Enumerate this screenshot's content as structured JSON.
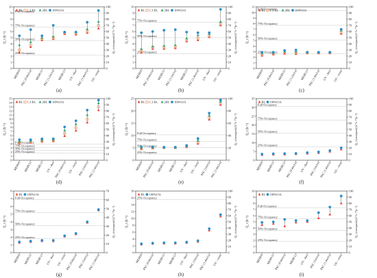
{
  "figure": {
    "legend_labels": {
      "bl": "BL",
      "bl13": "1.3 BL",
      "bl2": "2BL",
      "oa": "100%OA"
    }
  },
  "colors": {
    "bl": "#e8463c",
    "bl13": "#f0a070",
    "bl2": "#3aa870",
    "oa": "#2f8fc8",
    "grid": "#9a9a9a",
    "axis": "#333333",
    "stem": "#666666"
  },
  "chart_data": [
    {
      "panel_label": "(a)",
      "type": "scatter",
      "ylabel": "Q_r (h⁻¹)",
      "ylabel2": "Q_r (occupant) (L*s⁻¹*p⁻¹)",
      "ylim": [
        0,
        10
      ],
      "yticks": [
        0,
        1,
        2,
        3,
        4,
        5,
        6,
        7,
        8,
        9,
        10
      ],
      "y2lim": [
        0,
        100
      ],
      "y2ticks": [
        0,
        10,
        20,
        30,
        40,
        50,
        60,
        70,
        80,
        90,
        100
      ],
      "categories": [
        "MERV8",
        "PAC (0.4m3/s)",
        "MERV11",
        "PAC (1.2m3/s)",
        "MERV13",
        "UV - duct",
        "PAC (1.4m3/s)",
        "UV - room"
      ],
      "series": [
        {
          "key": "bl",
          "name": "BL",
          "values": [
            2.6,
            3.5,
            4.6,
            4.8,
            5.6,
            5.5,
            5.8,
            6.5
          ]
        },
        {
          "key": "bl13",
          "name": "1.3 BL",
          "values": [
            3.0,
            3.8,
            4.8,
            5.0,
            5.8,
            5.7,
            6.0,
            7.0
          ]
        },
        {
          "key": "bl2",
          "name": "2BL",
          "values": [
            3.8,
            4.3,
            5.0,
            5.2,
            5.9,
            5.9,
            6.4,
            7.6
          ]
        },
        {
          "key": "oa",
          "name": "100%OA",
          "values": [
            5.3,
            6.3,
            5.3,
            7.0,
            5.9,
            5.9,
            7.5,
            9.4
          ]
        }
      ],
      "reference_lines": [
        {
          "label": "Full Occupancy",
          "value": 9.0
        },
        {
          "label": "75% Occupancy",
          "value": 6.7
        },
        {
          "label": "50% Occupancy",
          "value": 4.5
        },
        {
          "label": "25% Occupancy",
          "value": 2.2
        }
      ],
      "legend": [
        "bl",
        "bl13",
        "bl2",
        "oa"
      ]
    },
    {
      "panel_label": "(b)",
      "type": "scatter",
      "ylabel": "Q_r (h⁻¹)",
      "ylabel2": "Q_r (occupant) (L*s⁻¹*p⁻¹)",
      "ylim": [
        0,
        10
      ],
      "yticks": [
        0,
        1,
        2,
        3,
        4,
        5,
        6,
        7,
        8,
        9,
        10
      ],
      "y2lim": [
        0,
        100
      ],
      "y2ticks": [
        0,
        10,
        20,
        30,
        40,
        50,
        60,
        70,
        80,
        90,
        100
      ],
      "categories": [
        "MERV8",
        "PAC (0.4m3/s)",
        "MERV11",
        "PAC (1.2m3/s)",
        "MERV13",
        "PAC (1.4m3/s)",
        "UV - duct",
        "UV - room"
      ],
      "series": [
        {
          "key": "bl",
          "name": "BL",
          "values": [
            2.6,
            3.2,
            3.2,
            3.3,
            4.4,
            4.6,
            5.1,
            7.0
          ]
        },
        {
          "key": "bl13",
          "name": "1.3 BL",
          "values": [
            2.8,
            3.4,
            3.4,
            3.5,
            4.6,
            4.9,
            5.3,
            7.2
          ]
        },
        {
          "key": "bl2",
          "name": "2BL",
          "values": [
            3.2,
            3.6,
            3.7,
            3.8,
            4.9,
            5.4,
            5.6,
            7.6
          ]
        },
        {
          "key": "oa",
          "name": "100%OA",
          "values": [
            5.8,
            6.0,
            6.2,
            6.3,
            5.9,
            5.8,
            5.8,
            9.6
          ]
        }
      ],
      "reference_lines": [
        {
          "label": "75% Occupancy",
          "value": 7.5
        },
        {
          "label": "50% Occupancy",
          "value": 5.0
        },
        {
          "label": "25% Occupancy",
          "value": 2.4
        }
      ],
      "legend": [
        "bl",
        "bl13",
        "bl2",
        "oa"
      ]
    },
    {
      "panel_label": "(c)",
      "type": "scatter",
      "ylabel": "Q_r (h⁻¹)",
      "ylabel2": "Q_r (occupant) (L*s⁻¹*p⁻¹)",
      "ylim": [
        0,
        11
      ],
      "yticks": [
        0,
        1,
        2,
        3,
        4,
        5,
        6,
        7,
        8,
        9,
        10,
        11
      ],
      "y2lim": [
        0,
        100
      ],
      "y2ticks": [
        0,
        10,
        20,
        30,
        40,
        50,
        60,
        70,
        80,
        90,
        100
      ],
      "categories": [
        "MERV8",
        "PAC (0.4m3/s)",
        "MERV11",
        "PAC (1.2m3/s)",
        "MERV13",
        "PAC (1.4m3/s)",
        "UV - duct",
        "UV - room"
      ],
      "series": [
        {
          "key": "bl",
          "name": "BL",
          "values": [
            2.3,
            2.5,
            2.6,
            2.6,
            2.7,
            2.7,
            2.7,
            6.2
          ]
        },
        {
          "key": "bl13",
          "name": "1.3 BL",
          "values": [
            2.5,
            2.6,
            2.7,
            2.8,
            2.8,
            2.8,
            2.8,
            6.5
          ]
        },
        {
          "key": "bl2",
          "name": "2BL",
          "values": [
            2.7,
            2.8,
            3.0,
            3.0,
            2.9,
            2.9,
            2.9,
            6.8
          ]
        },
        {
          "key": "oa",
          "name": "100%OA",
          "values": [
            2.9,
            2.9,
            3.2,
            3.3,
            2.9,
            2.9,
            2.9,
            7.0
          ]
        }
      ],
      "reference_lines": [
        {
          "label": "Full Occupancy",
          "value": 10.3
        },
        {
          "label": "75% Occupancy",
          "value": 7.7
        },
        {
          "label": "50% Occupancy",
          "value": 5.1
        },
        {
          "label": "25% Occupancy",
          "value": 2.6
        }
      ],
      "legend": [
        "bl",
        "bl13",
        "bl2",
        "oa"
      ]
    },
    {
      "panel_label": "(d)",
      "type": "scatter",
      "ylabel": "Q_r (h⁻¹)",
      "ylabel2": "Q_r (occupant) (L*s⁻¹*p⁻¹)",
      "ylim": [
        0,
        15
      ],
      "yticks": [
        0,
        1,
        2,
        3,
        4,
        5,
        6,
        7,
        8,
        9,
        10,
        11,
        12,
        13,
        14,
        15
      ],
      "y2lim": [
        0,
        100
      ],
      "y2ticks": [
        0,
        10,
        20,
        30,
        40,
        50,
        60,
        70,
        80,
        90,
        100
      ],
      "categories": [
        "MERV8",
        "MERV11",
        "MERV13",
        "UV - duct",
        "PAC (0.4m3/s)",
        "UV - room",
        "PAC (1m3/s)",
        "PAC (1.4m3/s)"
      ],
      "series": [
        {
          "key": "bl",
          "name": "BL",
          "values": [
            4.0,
            4.3,
            4.5,
            4.6,
            5.9,
            7.2,
            9.2,
            12.2
          ]
        },
        {
          "key": "bl13",
          "name": "1.3 BL",
          "values": [
            4.3,
            4.5,
            4.7,
            4.8,
            6.5,
            7.9,
            10.0,
            13.0
          ]
        },
        {
          "key": "bl2",
          "name": "2BL",
          "values": [
            4.6,
            4.7,
            4.9,
            5.0,
            7.3,
            8.8,
            11.0,
            13.9
          ]
        },
        {
          "key": "oa",
          "name": "100%OA",
          "values": [
            5.0,
            5.0,
            5.2,
            5.2,
            8.1,
            9.6,
            12.2,
            14.6
          ]
        }
      ],
      "reference_lines": [
        {
          "label": "Full Occupancy",
          "value": 3.9
        },
        {
          "label": "75% Occupancy",
          "value": 3.1
        },
        {
          "label": "50% Occupancy",
          "value": 2.4
        },
        {
          "label": "25% Occupancy",
          "value": 1.7
        }
      ],
      "legend": [
        "bl",
        "bl13",
        "bl2",
        "oa"
      ]
    },
    {
      "panel_label": "(e)",
      "type": "scatter",
      "ylabel": "Q_r (h⁻¹)",
      "ylabel2": "Q_r (occupant) (L*s⁻¹*p⁻¹)",
      "ylim": [
        0,
        25
      ],
      "yticks": [
        0,
        5,
        10,
        15,
        20,
        25
      ],
      "y2lim": [
        0,
        100
      ],
      "y2ticks": [
        0,
        20,
        40,
        60,
        80,
        100
      ],
      "categories": [
        "MERV8",
        "PAC (0.4m3/s)",
        "MERV11",
        "MERV13",
        "UV - duct",
        "UV - room",
        "PAC (1m3/s)",
        "PAC (1.4m3/s)"
      ],
      "series": [
        {
          "key": "bl",
          "name": "BL",
          "values": [
            4.5,
            4.8,
            5.0,
            5.0,
            5.3,
            6.7,
            16.5,
            22.5
          ]
        },
        {
          "key": "bl13",
          "name": "1.3 BL",
          "values": [
            4.8,
            5.0,
            5.1,
            5.1,
            5.5,
            7.2,
            17.3,
            23.2
          ]
        },
        {
          "key": "bl2",
          "name": "2BL",
          "values": [
            5.1,
            5.2,
            5.2,
            5.2,
            5.7,
            8.0,
            18.2,
            23.8
          ]
        },
        {
          "key": "oa",
          "name": "100%OA",
          "values": [
            5.4,
            5.4,
            5.3,
            5.3,
            6.0,
            8.8,
            19.1,
            24.4
          ]
        }
      ],
      "reference_lines": [
        {
          "label": "Full Occupancy",
          "value": 10.3
        },
        {
          "label": "75% Occupancy",
          "value": 7.6
        },
        {
          "label": "50% Occupancy",
          "value": 5.1
        },
        {
          "label": "25% Occupancy",
          "value": 2.5
        }
      ],
      "legend": [
        "bl",
        "bl13",
        "bl2",
        "oa"
      ]
    },
    {
      "panel_label": "(f)",
      "type": "scatter",
      "ylabel": "Q_r (h⁻¹)",
      "ylabel2": "Q_r (occupant) (L*s⁻¹*p⁻¹)",
      "ylim": [
        0,
        35
      ],
      "yticks": [
        0,
        5,
        10,
        15,
        20,
        25,
        30,
        35
      ],
      "y2lim": [
        0,
        100
      ],
      "y2ticks": [
        0,
        10,
        20,
        30,
        40,
        50,
        60,
        70,
        80,
        90,
        100
      ],
      "categories": [
        "MERV8",
        "MERV11",
        "MERV13",
        "PAC (0.4m3/s)",
        "UV - duct",
        "PAC (1m3/s)",
        "PAC (1.4m3/s)",
        "UV - room"
      ],
      "series": [
        {
          "key": "bl",
          "name": "BL",
          "values": [
            3.0,
            3.2,
            3.3,
            3.5,
            3.8,
            4.2,
            4.9,
            6.2
          ]
        },
        {
          "key": "oa",
          "name": "100%OA",
          "values": [
            3.5,
            3.7,
            3.8,
            3.9,
            4.3,
            4.7,
            5.5,
            7.0
          ]
        }
      ],
      "reference_lines": [
        {
          "label": "Full Occupancy",
          "value": 30.5
        },
        {
          "label": "75% Occupancy",
          "value": 22.8
        },
        {
          "label": "50% Occupancy",
          "value": 15.3
        },
        {
          "label": "25% Occupancy",
          "value": 7.5
        }
      ],
      "legend": [
        "bl",
        "oa"
      ]
    },
    {
      "panel_label": "(g)",
      "type": "scatter",
      "ylabel": "Q_r (h⁻¹)",
      "ylabel2": "Q_r (occupant) (L*s⁻¹*p⁻¹)",
      "ylim": [
        0,
        8
      ],
      "yticks": [
        0,
        1,
        2,
        3,
        4,
        5,
        6,
        7,
        8
      ],
      "y2lim": [
        0,
        70
      ],
      "y2ticks": [
        0,
        10,
        20,
        30,
        40,
        50,
        60,
        70
      ],
      "categories": [
        "MERV8",
        "MERV11",
        "MERV13",
        "UV - duct",
        "UV - room",
        "PAC (0.4m3/s)",
        "PAC (1m3/s)",
        "PAC (1.4m3/s)"
      ],
      "series": [
        {
          "key": "bl",
          "name": "BL",
          "values": [
            1.3,
            1.4,
            1.5,
            1.5,
            2.1,
            2.4,
            3.9,
            5.5
          ]
        },
        {
          "key": "oa",
          "name": "100%OA",
          "values": [
            1.4,
            1.5,
            1.6,
            1.6,
            2.2,
            2.5,
            4.0,
            5.6
          ]
        }
      ],
      "reference_lines": [
        {
          "label": "Full Occupancy",
          "value": 6.9
        },
        {
          "label": "75% Occupancy",
          "value": 5.2
        },
        {
          "label": "50% Occupancy",
          "value": 3.5
        },
        {
          "label": "25% Occupancy",
          "value": 1.8
        }
      ],
      "legend": [
        "bl",
        "oa"
      ]
    },
    {
      "panel_label": "(h)",
      "type": "scatter",
      "ylabel": "Q_r (h⁻¹)",
      "ylabel2": "Q_r (occupant) (L*s⁻¹*p⁻¹)",
      "ylim": [
        0,
        18
      ],
      "yticks": [
        0,
        2,
        4,
        6,
        8,
        10,
        12,
        14,
        16,
        18
      ],
      "y2lim": [
        0,
        100
      ],
      "y2ticks": [
        0,
        10,
        20,
        30,
        40,
        50,
        60,
        70,
        80,
        90,
        100
      ],
      "categories": [
        "MERV8",
        "PAC (0.4m3/s)",
        "MERV11",
        "MERV13",
        "UV - duct",
        "PAC (1m3/s)",
        "PAC (1.4m3/s)",
        "UV - room"
      ],
      "series": [
        {
          "key": "bl",
          "name": "BL",
          "values": [
            2.4,
            2.6,
            2.7,
            2.7,
            2.9,
            3.2,
            6.5,
            10.6
          ]
        },
        {
          "key": "oa",
          "name": "100%OA",
          "values": [
            2.6,
            2.8,
            2.9,
            2.9,
            3.1,
            3.5,
            7.0,
            11.1
          ]
        }
      ],
      "reference_lines": [
        {
          "label": "25% Occupancy",
          "value": 15.5
        }
      ],
      "legend": [
        "bl",
        "oa"
      ]
    },
    {
      "panel_label": "(i)",
      "type": "scatter",
      "ylabel": "Q_r (h⁻¹)",
      "ylabel2": "Q_r (occupant) (L*s⁻¹*p⁻¹)",
      "ylim": [
        0,
        10
      ],
      "yticks": [
        0,
        1,
        2,
        3,
        4,
        5,
        6,
        7,
        8,
        9,
        10
      ],
      "y2lim": [
        0,
        100
      ],
      "y2ticks": [
        0,
        10,
        20,
        30,
        40,
        50,
        60,
        70,
        80,
        90,
        100
      ],
      "categories": [
        "MERV8",
        "MERV11",
        "PAC (0.4m3/s)",
        "MERV13",
        "UV - duct",
        "PAC (1m3/s)",
        "PAC (1.4m3/s)",
        "UV - room"
      ],
      "series": [
        {
          "key": "bl",
          "name": "BL",
          "values": [
            4.5,
            4.7,
            4.3,
            4.9,
            5.0,
            5.6,
            6.2,
            8.0
          ]
        },
        {
          "key": "oa",
          "name": "100%OA",
          "values": [
            4.9,
            5.0,
            5.4,
            5.2,
            5.2,
            6.5,
            7.4,
            9.2
          ]
        }
      ],
      "reference_lines": [
        {
          "label": "Full Occupancy",
          "value": 7.3
        },
        {
          "label": "75% Occupancy",
          "value": 5.5
        },
        {
          "label": "50% Occupancy",
          "value": 3.6
        },
        {
          "label": "25% Occupancy",
          "value": 1.8
        }
      ],
      "legend": [
        "bl",
        "oa"
      ]
    }
  ]
}
